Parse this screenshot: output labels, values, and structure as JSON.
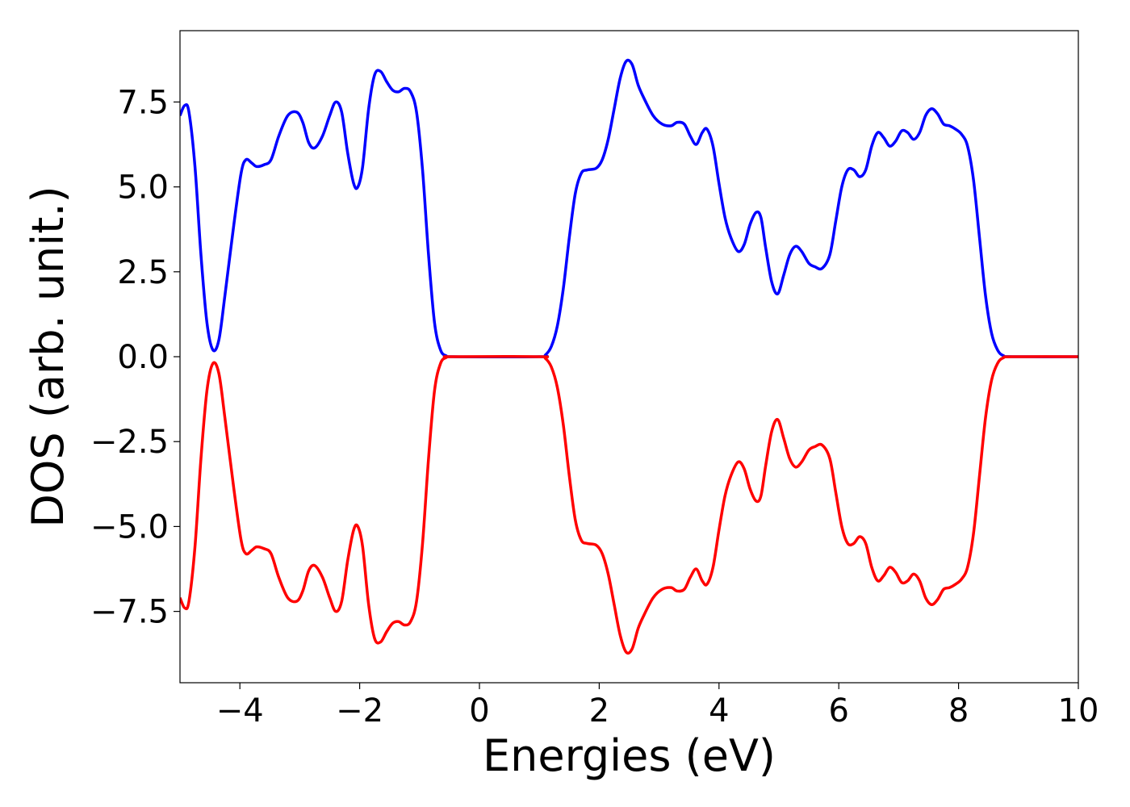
{
  "chart_data": {
    "type": "line",
    "xlabel": "Energies (eV)",
    "ylabel": "DOS (arb. unit.)",
    "xlim": [
      -5,
      10
    ],
    "ylim": [
      -9.6,
      9.6
    ],
    "grid": false,
    "legend": "none",
    "x_ticks": [
      {
        "value": -4,
        "label": "−4"
      },
      {
        "value": -2,
        "label": "−2"
      },
      {
        "value": 0,
        "label": "0"
      },
      {
        "value": 2,
        "label": "2"
      },
      {
        "value": 4,
        "label": "4"
      },
      {
        "value": 6,
        "label": "6"
      },
      {
        "value": 8,
        "label": "8"
      },
      {
        "value": 10,
        "label": "10"
      }
    ],
    "y_ticks": [
      {
        "value": 7.5,
        "label": "7.5"
      },
      {
        "value": 5.0,
        "label": "5.0"
      },
      {
        "value": 2.5,
        "label": "2.5"
      },
      {
        "value": 0.0,
        "label": "0.0"
      },
      {
        "value": -2.5,
        "label": "−2.5"
      },
      {
        "value": -5.0,
        "label": "−5.0"
      },
      {
        "value": -7.5,
        "label": "−7.5"
      }
    ],
    "series": [
      {
        "color": "#0000ff",
        "points": [
          [
            -5.0,
            7.1
          ],
          [
            -4.92,
            7.4
          ],
          [
            -4.85,
            7.2
          ],
          [
            -4.75,
            5.6
          ],
          [
            -4.65,
            3.0
          ],
          [
            -4.55,
            1.0
          ],
          [
            -4.45,
            0.2
          ],
          [
            -4.35,
            0.5
          ],
          [
            -4.25,
            1.8
          ],
          [
            -4.1,
            3.9
          ],
          [
            -3.98,
            5.4
          ],
          [
            -3.9,
            5.8
          ],
          [
            -3.8,
            5.7
          ],
          [
            -3.72,
            5.6
          ],
          [
            -3.6,
            5.65
          ],
          [
            -3.48,
            5.8
          ],
          [
            -3.35,
            6.5
          ],
          [
            -3.2,
            7.1
          ],
          [
            -3.05,
            7.2
          ],
          [
            -2.95,
            6.9
          ],
          [
            -2.85,
            6.3
          ],
          [
            -2.75,
            6.15
          ],
          [
            -2.62,
            6.5
          ],
          [
            -2.5,
            7.1
          ],
          [
            -2.4,
            7.5
          ],
          [
            -2.3,
            7.2
          ],
          [
            -2.2,
            6.0
          ],
          [
            -2.1,
            5.1
          ],
          [
            -2.03,
            5.0
          ],
          [
            -1.95,
            5.6
          ],
          [
            -1.85,
            7.3
          ],
          [
            -1.75,
            8.3
          ],
          [
            -1.65,
            8.4
          ],
          [
            -1.55,
            8.1
          ],
          [
            -1.45,
            7.85
          ],
          [
            -1.35,
            7.8
          ],
          [
            -1.25,
            7.9
          ],
          [
            -1.15,
            7.8
          ],
          [
            -1.05,
            7.2
          ],
          [
            -0.95,
            5.5
          ],
          [
            -0.85,
            3.0
          ],
          [
            -0.75,
            1.0
          ],
          [
            -0.65,
            0.2
          ],
          [
            -0.55,
            0.02
          ],
          [
            -0.45,
            0.0
          ],
          [
            1.0,
            0.0
          ],
          [
            1.1,
            0.05
          ],
          [
            1.2,
            0.3
          ],
          [
            1.3,
            0.9
          ],
          [
            1.4,
            2.0
          ],
          [
            1.5,
            3.5
          ],
          [
            1.6,
            4.8
          ],
          [
            1.7,
            5.4
          ],
          [
            1.8,
            5.5
          ],
          [
            1.95,
            5.55
          ],
          [
            2.05,
            5.8
          ],
          [
            2.15,
            6.4
          ],
          [
            2.25,
            7.3
          ],
          [
            2.35,
            8.2
          ],
          [
            2.45,
            8.7
          ],
          [
            2.55,
            8.6
          ],
          [
            2.65,
            8.0
          ],
          [
            2.75,
            7.6
          ],
          [
            2.9,
            7.1
          ],
          [
            3.05,
            6.85
          ],
          [
            3.2,
            6.8
          ],
          [
            3.3,
            6.9
          ],
          [
            3.42,
            6.85
          ],
          [
            3.52,
            6.5
          ],
          [
            3.62,
            6.25
          ],
          [
            3.72,
            6.6
          ],
          [
            3.8,
            6.7
          ],
          [
            3.9,
            6.2
          ],
          [
            4.0,
            5.1
          ],
          [
            4.1,
            4.1
          ],
          [
            4.2,
            3.5
          ],
          [
            4.32,
            3.1
          ],
          [
            4.42,
            3.3
          ],
          [
            4.52,
            3.9
          ],
          [
            4.62,
            4.25
          ],
          [
            4.7,
            4.1
          ],
          [
            4.78,
            3.2
          ],
          [
            4.88,
            2.2
          ],
          [
            4.98,
            1.85
          ],
          [
            5.08,
            2.4
          ],
          [
            5.18,
            3.0
          ],
          [
            5.28,
            3.25
          ],
          [
            5.38,
            3.1
          ],
          [
            5.5,
            2.75
          ],
          [
            5.6,
            2.65
          ],
          [
            5.72,
            2.6
          ],
          [
            5.85,
            3.0
          ],
          [
            5.95,
            4.0
          ],
          [
            6.05,
            5.0
          ],
          [
            6.15,
            5.5
          ],
          [
            6.25,
            5.5
          ],
          [
            6.35,
            5.3
          ],
          [
            6.45,
            5.5
          ],
          [
            6.55,
            6.2
          ],
          [
            6.65,
            6.6
          ],
          [
            6.75,
            6.45
          ],
          [
            6.85,
            6.2
          ],
          [
            6.95,
            6.35
          ],
          [
            7.05,
            6.65
          ],
          [
            7.15,
            6.6
          ],
          [
            7.25,
            6.4
          ],
          [
            7.35,
            6.6
          ],
          [
            7.45,
            7.1
          ],
          [
            7.55,
            7.3
          ],
          [
            7.65,
            7.15
          ],
          [
            7.75,
            6.85
          ],
          [
            7.85,
            6.8
          ],
          [
            7.95,
            6.7
          ],
          [
            8.05,
            6.55
          ],
          [
            8.15,
            6.2
          ],
          [
            8.25,
            5.2
          ],
          [
            8.35,
            3.5
          ],
          [
            8.45,
            1.8
          ],
          [
            8.55,
            0.7
          ],
          [
            8.65,
            0.2
          ],
          [
            8.75,
            0.03
          ],
          [
            8.9,
            0.0
          ],
          [
            10.0,
            0.0
          ]
        ]
      },
      {
        "color": "#ff0000",
        "points": [
          [
            -5.0,
            -7.1
          ],
          [
            -4.92,
            -7.4
          ],
          [
            -4.85,
            -7.2
          ],
          [
            -4.75,
            -5.6
          ],
          [
            -4.65,
            -3.0
          ],
          [
            -4.55,
            -1.0
          ],
          [
            -4.45,
            -0.2
          ],
          [
            -4.35,
            -0.5
          ],
          [
            -4.25,
            -1.8
          ],
          [
            -4.1,
            -3.9
          ],
          [
            -3.98,
            -5.4
          ],
          [
            -3.9,
            -5.8
          ],
          [
            -3.8,
            -5.7
          ],
          [
            -3.72,
            -5.6
          ],
          [
            -3.6,
            -5.65
          ],
          [
            -3.48,
            -5.8
          ],
          [
            -3.35,
            -6.5
          ],
          [
            -3.2,
            -7.1
          ],
          [
            -3.05,
            -7.2
          ],
          [
            -2.95,
            -6.9
          ],
          [
            -2.85,
            -6.3
          ],
          [
            -2.75,
            -6.15
          ],
          [
            -2.62,
            -6.5
          ],
          [
            -2.5,
            -7.1
          ],
          [
            -2.4,
            -7.5
          ],
          [
            -2.3,
            -7.2
          ],
          [
            -2.2,
            -6.0
          ],
          [
            -2.1,
            -5.1
          ],
          [
            -2.03,
            -5.0
          ],
          [
            -1.95,
            -5.6
          ],
          [
            -1.85,
            -7.3
          ],
          [
            -1.75,
            -8.3
          ],
          [
            -1.65,
            -8.4
          ],
          [
            -1.55,
            -8.1
          ],
          [
            -1.45,
            -7.85
          ],
          [
            -1.35,
            -7.8
          ],
          [
            -1.25,
            -7.9
          ],
          [
            -1.15,
            -7.8
          ],
          [
            -1.05,
            -7.2
          ],
          [
            -0.95,
            -5.5
          ],
          [
            -0.85,
            -3.0
          ],
          [
            -0.75,
            -1.0
          ],
          [
            -0.65,
            -0.2
          ],
          [
            -0.55,
            -0.02
          ],
          [
            -0.45,
            0.0
          ],
          [
            1.0,
            0.0
          ],
          [
            1.1,
            -0.05
          ],
          [
            1.2,
            -0.3
          ],
          [
            1.3,
            -0.9
          ],
          [
            1.4,
            -2.0
          ],
          [
            1.5,
            -3.5
          ],
          [
            1.6,
            -4.8
          ],
          [
            1.7,
            -5.4
          ],
          [
            1.8,
            -5.5
          ],
          [
            1.95,
            -5.55
          ],
          [
            2.05,
            -5.8
          ],
          [
            2.15,
            -6.4
          ],
          [
            2.25,
            -7.3
          ],
          [
            2.35,
            -8.2
          ],
          [
            2.45,
            -8.7
          ],
          [
            2.55,
            -8.6
          ],
          [
            2.65,
            -8.0
          ],
          [
            2.75,
            -7.6
          ],
          [
            2.9,
            -7.1
          ],
          [
            3.05,
            -6.85
          ],
          [
            3.2,
            -6.8
          ],
          [
            3.3,
            -6.9
          ],
          [
            3.42,
            -6.85
          ],
          [
            3.52,
            -6.5
          ],
          [
            3.62,
            -6.25
          ],
          [
            3.72,
            -6.6
          ],
          [
            3.8,
            -6.7
          ],
          [
            3.9,
            -6.2
          ],
          [
            4.0,
            -5.1
          ],
          [
            4.1,
            -4.1
          ],
          [
            4.2,
            -3.5
          ],
          [
            4.32,
            -3.1
          ],
          [
            4.42,
            -3.3
          ],
          [
            4.52,
            -3.9
          ],
          [
            4.62,
            -4.25
          ],
          [
            4.7,
            -4.1
          ],
          [
            4.78,
            -3.2
          ],
          [
            4.88,
            -2.2
          ],
          [
            4.98,
            -1.85
          ],
          [
            5.08,
            -2.4
          ],
          [
            5.18,
            -3.0
          ],
          [
            5.28,
            -3.25
          ],
          [
            5.38,
            -3.1
          ],
          [
            5.5,
            -2.75
          ],
          [
            5.6,
            -2.65
          ],
          [
            5.72,
            -2.6
          ],
          [
            5.85,
            -3.0
          ],
          [
            5.95,
            -4.0
          ],
          [
            6.05,
            -5.0
          ],
          [
            6.15,
            -5.5
          ],
          [
            6.25,
            -5.5
          ],
          [
            6.35,
            -5.3
          ],
          [
            6.45,
            -5.5
          ],
          [
            6.55,
            -6.2
          ],
          [
            6.65,
            -6.6
          ],
          [
            6.75,
            -6.45
          ],
          [
            6.85,
            -6.2
          ],
          [
            6.95,
            -6.35
          ],
          [
            7.05,
            -6.65
          ],
          [
            7.15,
            -6.6
          ],
          [
            7.25,
            -6.4
          ],
          [
            7.35,
            -6.6
          ],
          [
            7.45,
            -7.1
          ],
          [
            7.55,
            -7.3
          ],
          [
            7.65,
            -7.15
          ],
          [
            7.75,
            -6.85
          ],
          [
            7.85,
            -6.8
          ],
          [
            7.95,
            -6.7
          ],
          [
            8.05,
            -6.55
          ],
          [
            8.15,
            -6.2
          ],
          [
            8.25,
            -5.2
          ],
          [
            8.35,
            -3.5
          ],
          [
            8.45,
            -1.8
          ],
          [
            8.55,
            -0.7
          ],
          [
            8.65,
            -0.2
          ],
          [
            8.75,
            -0.03
          ],
          [
            8.9,
            0.0
          ],
          [
            10.0,
            0.0
          ]
        ]
      }
    ]
  }
}
